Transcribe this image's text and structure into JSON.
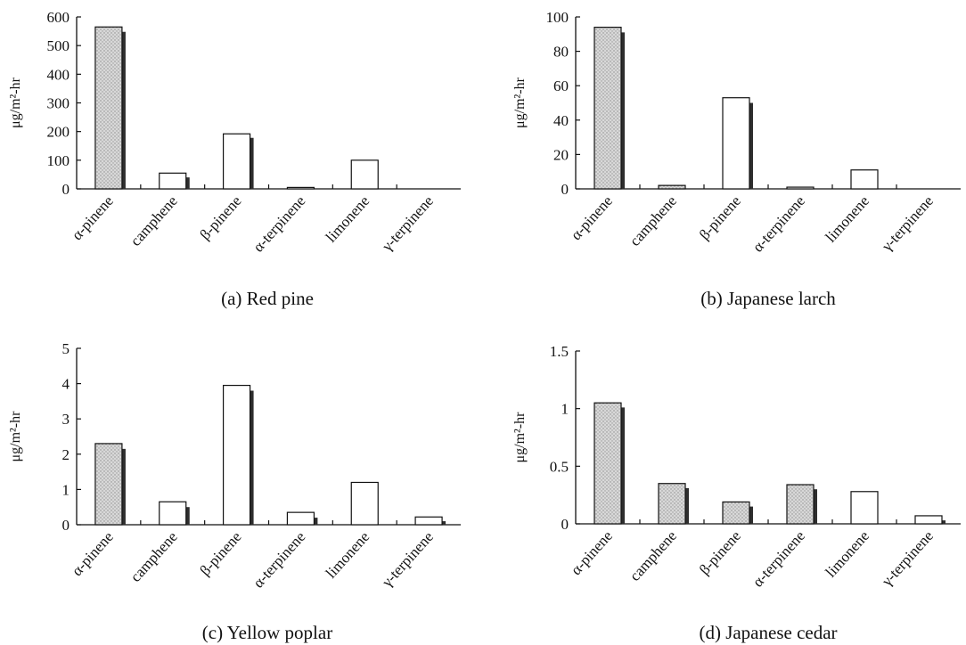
{
  "colors": {
    "stipple_bar": "#cfcfcf",
    "plain_bar": "#ffffff",
    "shadow": "#2e2e2e",
    "axis": "#111111"
  },
  "chart_data": [
    {
      "type": "bar",
      "caption": "(a) Red pine",
      "ylabel": "μg/m²-hr",
      "ylim": [
        0,
        600
      ],
      "yticks": [
        "0",
        "100",
        "200",
        "300",
        "400",
        "500",
        "600"
      ],
      "categories": [
        "α-pinene",
        "camphene",
        "β-pinene",
        "α-terpinene",
        "limonene",
        "γ-terpinene"
      ],
      "values": [
        565,
        55,
        192,
        5,
        100,
        0
      ],
      "shadow_values": [
        548,
        40,
        178,
        0,
        0,
        0
      ],
      "bar_styles": [
        "stipple",
        "plain",
        "plain",
        "plain",
        "plain",
        "plain"
      ],
      "grid": false
    },
    {
      "type": "bar",
      "caption": "(b) Japanese larch",
      "ylabel": "μg/m²-hr",
      "ylim": [
        0,
        100
      ],
      "yticks": [
        "0",
        "20",
        "40",
        "60",
        "80",
        "100"
      ],
      "categories": [
        "α-pinene",
        "camphene",
        "β-pinene",
        "α-terpinene",
        "limonene",
        "γ-terpinene"
      ],
      "values": [
        94,
        2,
        53,
        1,
        11,
        0
      ],
      "shadow_values": [
        91,
        0,
        50,
        0,
        0,
        0
      ],
      "bar_styles": [
        "stipple",
        "stipple",
        "plain",
        "plain",
        "plain",
        "plain"
      ],
      "grid": false
    },
    {
      "type": "bar",
      "caption": "(c) Yellow poplar",
      "ylabel": "μg/m²-hr",
      "ylim": [
        0,
        5
      ],
      "yticks": [
        "0",
        "1",
        "2",
        "3",
        "4",
        "5"
      ],
      "categories": [
        "α-pinene",
        "camphene",
        "β-pinene",
        "α-terpinene",
        "limonene",
        "γ-terpinene"
      ],
      "values": [
        2.3,
        0.65,
        3.95,
        0.35,
        1.2,
        0.22
      ],
      "shadow_values": [
        2.15,
        0.5,
        3.8,
        0.2,
        0,
        0.1
      ],
      "bar_styles": [
        "stipple",
        "plain",
        "plain",
        "plain",
        "plain",
        "plain"
      ],
      "grid": false
    },
    {
      "type": "bar",
      "caption": "(d) Japanese cedar",
      "ylabel": "μg/m²-hr",
      "ylim": [
        0,
        1.5
      ],
      "yticks": [
        "0",
        "0.5",
        "1",
        "1.5"
      ],
      "categories": [
        "α-pinene",
        "camphene",
        "β-pinene",
        "α-terpinene",
        "limonene",
        "γ-terpinene"
      ],
      "values": [
        1.05,
        0.35,
        0.19,
        0.34,
        0.28,
        0.07
      ],
      "shadow_values": [
        1.01,
        0.31,
        0.15,
        0.3,
        0,
        0.03
      ],
      "bar_styles": [
        "stipple",
        "stipple",
        "stipple",
        "stipple",
        "plain",
        "plain"
      ],
      "grid": false
    }
  ]
}
